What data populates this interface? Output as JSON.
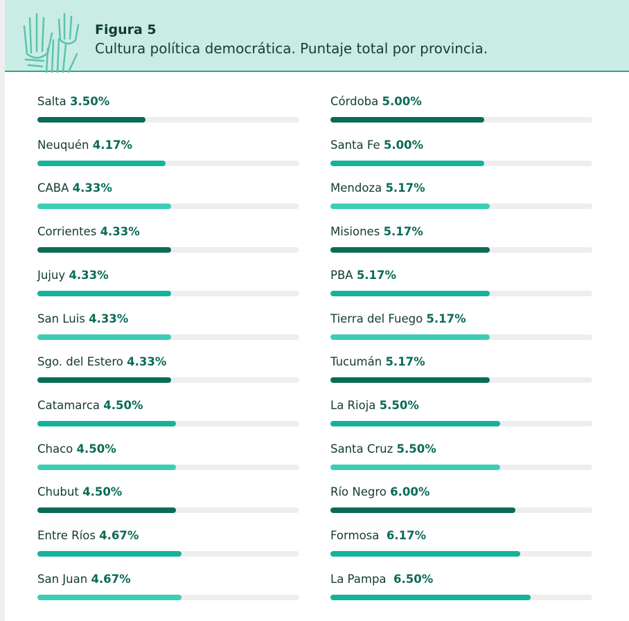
{
  "chart_data": {
    "type": "progress",
    "title": "Figura 5",
    "subtitle": "Cultura política democrática. Puntaje total por provincia.",
    "categories": [
      "Salta",
      "Neuquén",
      "CABA",
      "Corrientes",
      "Jujuy",
      "San Luis",
      "Sgo. del Estero",
      "Catamarca",
      "Chaco",
      "Chubut",
      "Entre Ríos",
      "San Juan",
      "Córdoba",
      "Santa Fe",
      "Mendoza",
      "Misiones",
      "PBA",
      "Tierra del Fuego",
      "Tucumán",
      "La Rioja",
      "Santa Cruz",
      "Río Negro",
      "Formosa ",
      "La Pampa "
    ],
    "values": [
      3.5,
      4.17,
      4.33,
      4.33,
      4.33,
      4.33,
      4.33,
      4.5,
      4.5,
      4.5,
      4.67,
      4.67,
      5.0,
      5.0,
      5.17,
      5.17,
      5.17,
      5.17,
      5.17,
      5.5,
      5.5,
      6.0,
      6.17,
      6.5
    ],
    "value_labels": [
      "3.50%",
      "4.17%",
      "4.33%",
      "4.33%",
      "4.33%",
      "4.33%",
      "4.33%",
      "4.50%",
      "4.50%",
      "4.50%",
      "4.67%",
      "4.67%",
      "5.00%",
      "5.00%",
      "5.17%",
      "5.17%",
      "5.17%",
      "5.17%",
      "5.17%",
      "5.50%",
      "5.50%",
      "6.00%",
      "6.17%",
      "6.50%"
    ],
    "colors": [
      "#0b6b57",
      "#14b39a",
      "#3dcdb7",
      "#0b6b57",
      "#14b39a",
      "#3dcdb7",
      "#0b6b57",
      "#14b39a",
      "#3dcdb7",
      "#0b6b57",
      "#14b39a",
      "#3dcdb7",
      "#0b6b57",
      "#14b39a",
      "#3dcdb7",
      "#0b6b57",
      "#14b39a",
      "#3dcdb7",
      "#0b6b57",
      "#14b39a",
      "#3dcdb7",
      "#0b6b57",
      "#14b39a",
      "#14b39a"
    ],
    "xlim": [
      0,
      8.5
    ]
  }
}
